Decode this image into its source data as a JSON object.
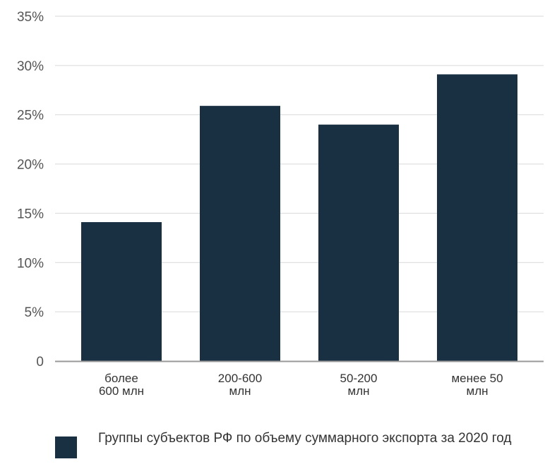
{
  "chart_data": {
    "type": "bar",
    "categories": [
      [
        "более",
        "600 млн"
      ],
      [
        "200-600",
        "млн"
      ],
      [
        "50-200",
        "млн"
      ],
      [
        "менее 50",
        "млн"
      ]
    ],
    "series": [
      {
        "name": "Группы субъектов РФ по объему суммарного экспорта за 2020 год",
        "values": [
          14.1,
          25.9,
          24.0,
          29.1
        ]
      }
    ],
    "ylim": [
      0,
      35
    ],
    "yticks": [
      {
        "value": 0,
        "label": "0"
      },
      {
        "value": 5,
        "label": "5%"
      },
      {
        "value": 10,
        "label": "10%"
      },
      {
        "value": 15,
        "label": "15%"
      },
      {
        "value": 20,
        "label": "20%"
      },
      {
        "value": 25,
        "label": "25%"
      },
      {
        "value": 30,
        "label": "30%"
      },
      {
        "value": 35,
        "label": "35%"
      }
    ],
    "title": "",
    "xlabel": "",
    "ylabel": "",
    "grid": true,
    "legend_position": "bottom",
    "colors": {
      "bar": "#183042",
      "grid": "#d9d9d9",
      "axis": "#999999"
    }
  }
}
